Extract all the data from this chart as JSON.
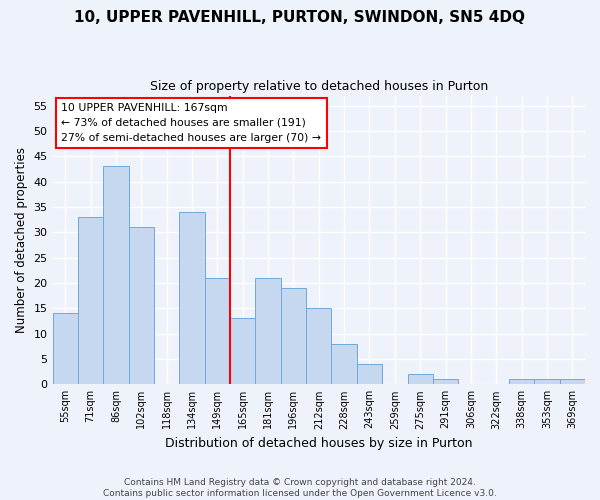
{
  "title": "10, UPPER PAVENHILL, PURTON, SWINDON, SN5 4DQ",
  "subtitle": "Size of property relative to detached houses in Purton",
  "xlabel": "Distribution of detached houses by size in Purton",
  "ylabel": "Number of detached properties",
  "bin_labels": [
    "55sqm",
    "71sqm",
    "86sqm",
    "102sqm",
    "118sqm",
    "134sqm",
    "149sqm",
    "165sqm",
    "181sqm",
    "196sqm",
    "212sqm",
    "228sqm",
    "243sqm",
    "259sqm",
    "275sqm",
    "291sqm",
    "306sqm",
    "322sqm",
    "338sqm",
    "353sqm",
    "369sqm"
  ],
  "bar_heights": [
    14,
    33,
    43,
    31,
    0,
    34,
    21,
    13,
    21,
    19,
    15,
    8,
    4,
    0,
    2,
    1,
    0,
    0,
    1,
    1,
    1
  ],
  "bar_color": "#c5d8f0",
  "bar_edge_color": "#6fa8dc",
  "ref_line_bin_index": 7,
  "annotation_title": "10 UPPER PAVENHILL: 167sqm",
  "annotation_line1": "← 73% of detached houses are smaller (191)",
  "annotation_line2": "27% of semi-detached houses are larger (70) →",
  "ylim": [
    0,
    57
  ],
  "yticks": [
    0,
    5,
    10,
    15,
    20,
    25,
    30,
    35,
    40,
    45,
    50,
    55
  ],
  "footer_line1": "Contains HM Land Registry data © Crown copyright and database right 2024.",
  "footer_line2": "Contains public sector information licensed under the Open Government Licence v3.0.",
  "bg_color": "#eef3fb",
  "grid_color": "#ffffff",
  "title_fontsize": 11,
  "subtitle_fontsize": 9,
  "xlabel_fontsize": 9,
  "ylabel_fontsize": 8.5,
  "tick_fontsize": 7,
  "footer_fontsize": 6.5
}
